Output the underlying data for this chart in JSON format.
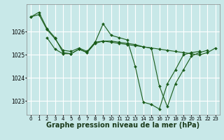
{
  "background_color": "#c8e8e8",
  "grid_color": "#ffffff",
  "line_color": "#1a5c1a",
  "marker_color": "#1a5c1a",
  "xlabel": "Graphe pression niveau de la mer (hPa)",
  "xlabel_fontsize": 7,
  "tick_fontsize": 5.5,
  "ylim": [
    1022.4,
    1027.2
  ],
  "yticks": [
    1023,
    1024,
    1025,
    1026
  ],
  "xlim": [
    -0.5,
    23.5
  ],
  "xticks": [
    0,
    1,
    2,
    3,
    4,
    5,
    6,
    7,
    8,
    9,
    10,
    11,
    12,
    13,
    14,
    15,
    16,
    17,
    18,
    19,
    20,
    21,
    22,
    23
  ],
  "series1_x": [
    0,
    1,
    2,
    3,
    4,
    5,
    6,
    7,
    8,
    9,
    10,
    11,
    12,
    13,
    14,
    15,
    16,
    17,
    18,
    19,
    20,
    21
  ],
  "series1_y": [
    1026.65,
    1026.85,
    1026.15,
    1025.75,
    1025.1,
    1025.05,
    1025.25,
    1025.1,
    1025.55,
    1026.35,
    1025.85,
    1025.75,
    1025.65,
    1024.5,
    1022.95,
    1022.85,
    1022.65,
    1023.75,
    1024.35,
    1025.0,
    1025.1,
    1025.15
  ],
  "series2_x": [
    0,
    1,
    2,
    3,
    4,
    5,
    6,
    7,
    8,
    9,
    10,
    11,
    12,
    13,
    14,
    15,
    16,
    17,
    18,
    19,
    20,
    21,
    22,
    23
  ],
  "series2_y": [
    1026.65,
    1026.75,
    1026.1,
    1025.7,
    1025.2,
    1025.15,
    1025.3,
    1025.15,
    1025.55,
    1025.6,
    1025.55,
    1025.5,
    1025.45,
    1025.4,
    1025.35,
    1025.3,
    1025.25,
    1025.2,
    1025.15,
    1025.1,
    1025.05,
    1025.0,
    1025.1,
    1025.3
  ],
  "series3_x": [
    2,
    3,
    4,
    5,
    6,
    7,
    8,
    9,
    10,
    11,
    12,
    13,
    14,
    15
  ],
  "series3_y": [
    1025.75,
    1025.25,
    1025.05,
    1025.05,
    1025.25,
    1025.1,
    1025.5,
    1025.6,
    1025.6,
    1025.55,
    1025.5,
    1025.45,
    1025.35,
    1025.3
  ],
  "series4_x": [
    15,
    16,
    17,
    18,
    19,
    20,
    21,
    22
  ],
  "series4_y": [
    1025.3,
    1023.65,
    1022.75,
    1023.75,
    1024.35,
    1024.95,
    1025.1,
    1025.2
  ]
}
